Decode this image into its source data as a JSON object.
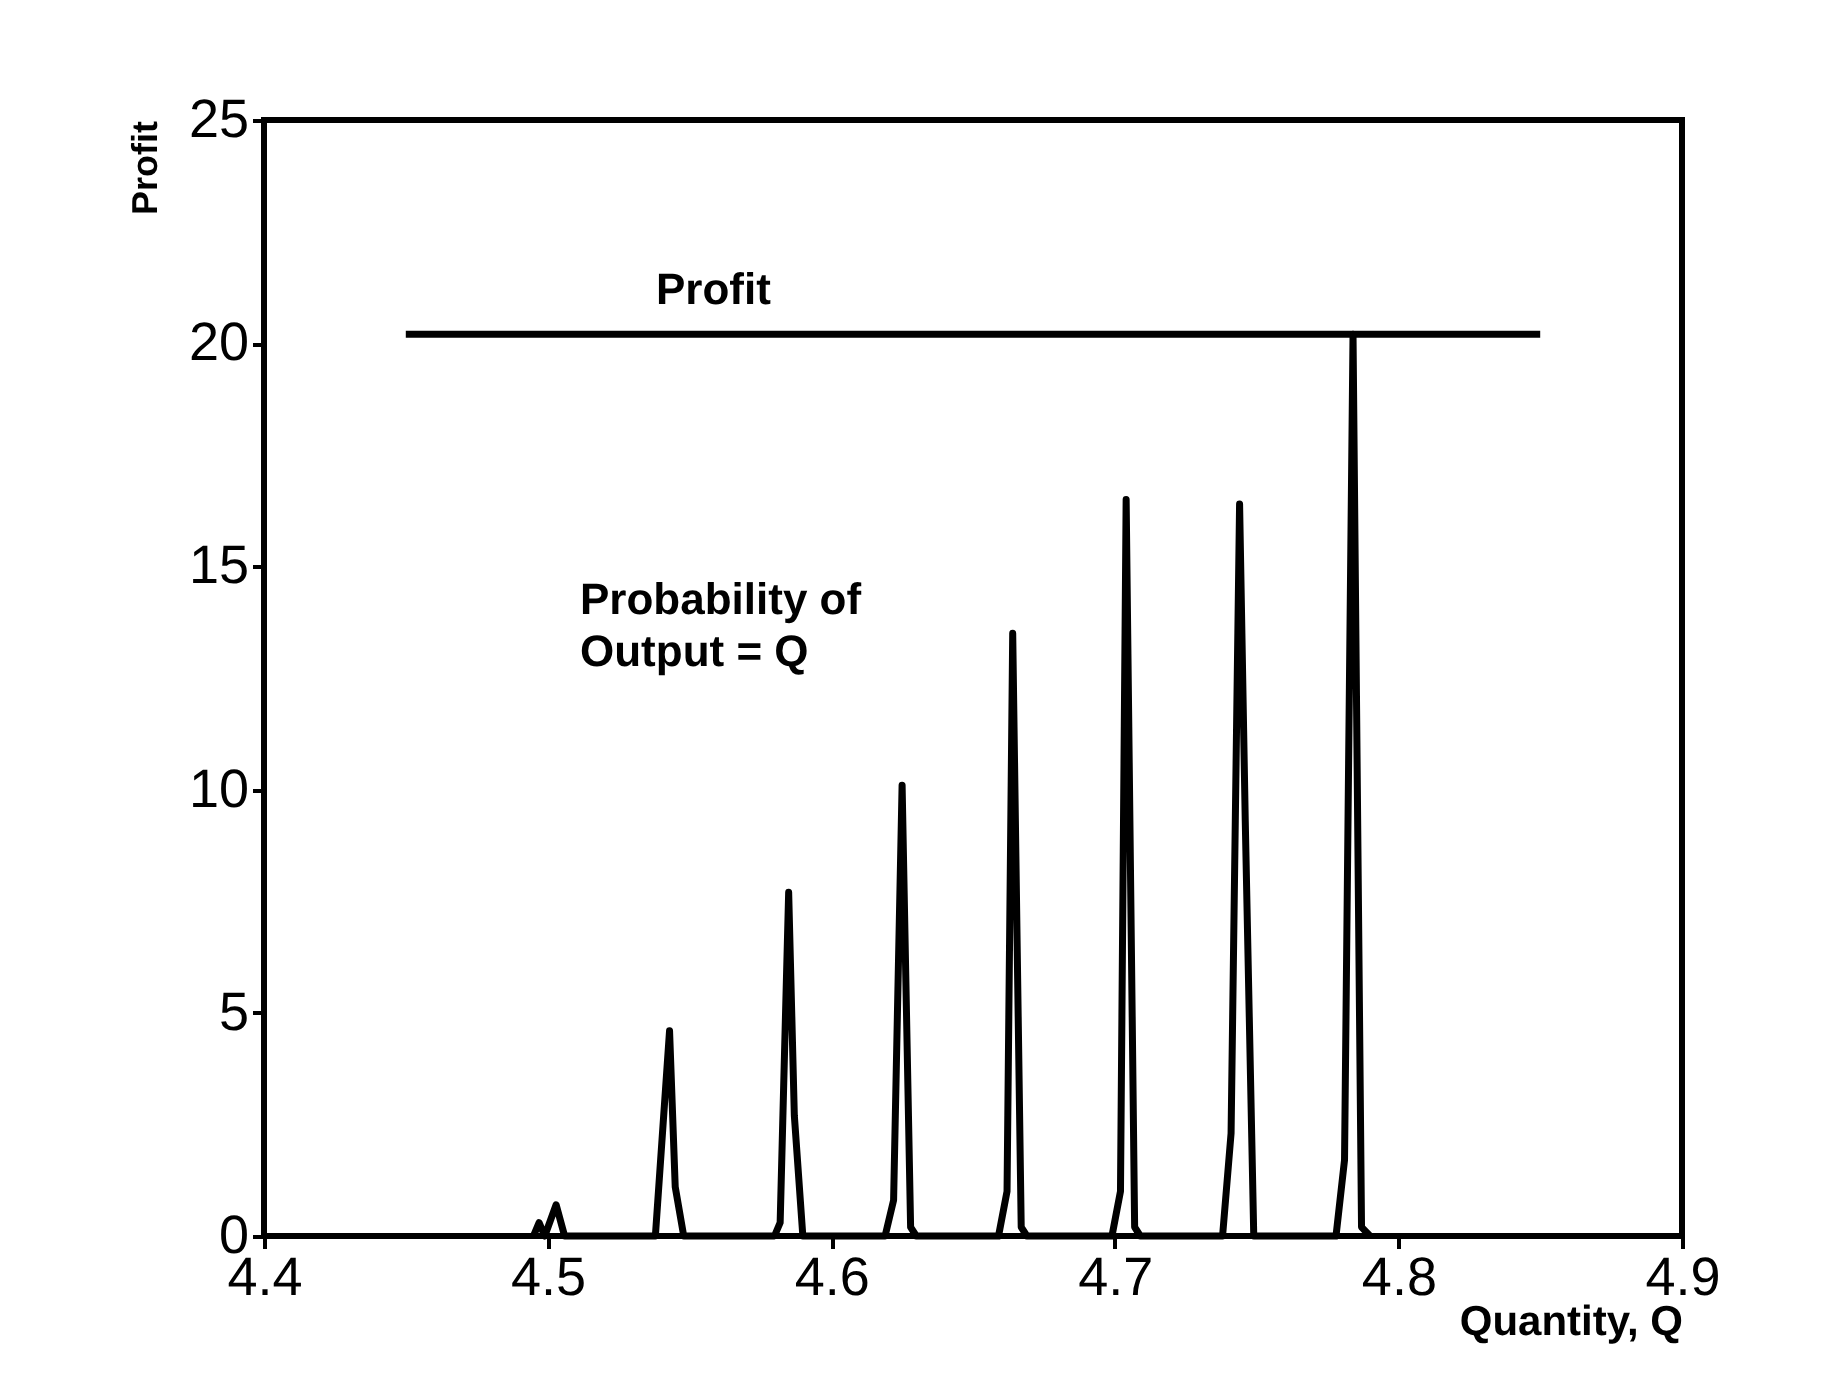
{
  "chart_data": {
    "type": "line",
    "xlabel": "Quantity, Q",
    "ylabel": "Profit",
    "xlim": [
      4.4,
      4.9
    ],
    "ylim": [
      0,
      25
    ],
    "xticks": [
      4.4,
      4.5,
      4.6,
      4.7,
      4.8,
      4.9
    ],
    "yticks": [
      0,
      5,
      10,
      15,
      20,
      25
    ],
    "grid": false,
    "legend": false,
    "marker": "none",
    "line_style": "solid",
    "series": [
      {
        "color": "#000000",
        "x": [
          4.45,
          4.85
        ],
        "values": [
          20.2,
          20.2
        ]
      },
      {
        "color": "#000000",
        "x": [
          4.495,
          4.497,
          4.499,
          4.503,
          4.506,
          4.538,
          4.543,
          4.545,
          4.548,
          4.58,
          4.582,
          4.585,
          4.587,
          4.59,
          4.619,
          4.622,
          4.625,
          4.628,
          4.63,
          4.659,
          4.662,
          4.664,
          4.667,
          4.669,
          4.699,
          4.702,
          4.704,
          4.707,
          4.709,
          4.738,
          4.741,
          4.744,
          4.746,
          4.749,
          4.778,
          4.781,
          4.784,
          4.787,
          4.79
        ],
        "values": [
          0,
          0.3,
          0,
          0.7,
          0,
          0,
          4.6,
          1.1,
          0,
          0,
          0.3,
          7.7,
          2.7,
          0,
          0,
          0.8,
          10.1,
          0.2,
          0,
          0,
          1.0,
          13.5,
          0.2,
          0,
          0,
          1.0,
          16.5,
          0.2,
          0,
          0,
          2.3,
          16.4,
          9.3,
          0,
          0,
          1.7,
          20.2,
          0.2,
          0
        ]
      }
    ],
    "annotations": [
      "Profit",
      "Probability of\nOutput = Q"
    ]
  }
}
